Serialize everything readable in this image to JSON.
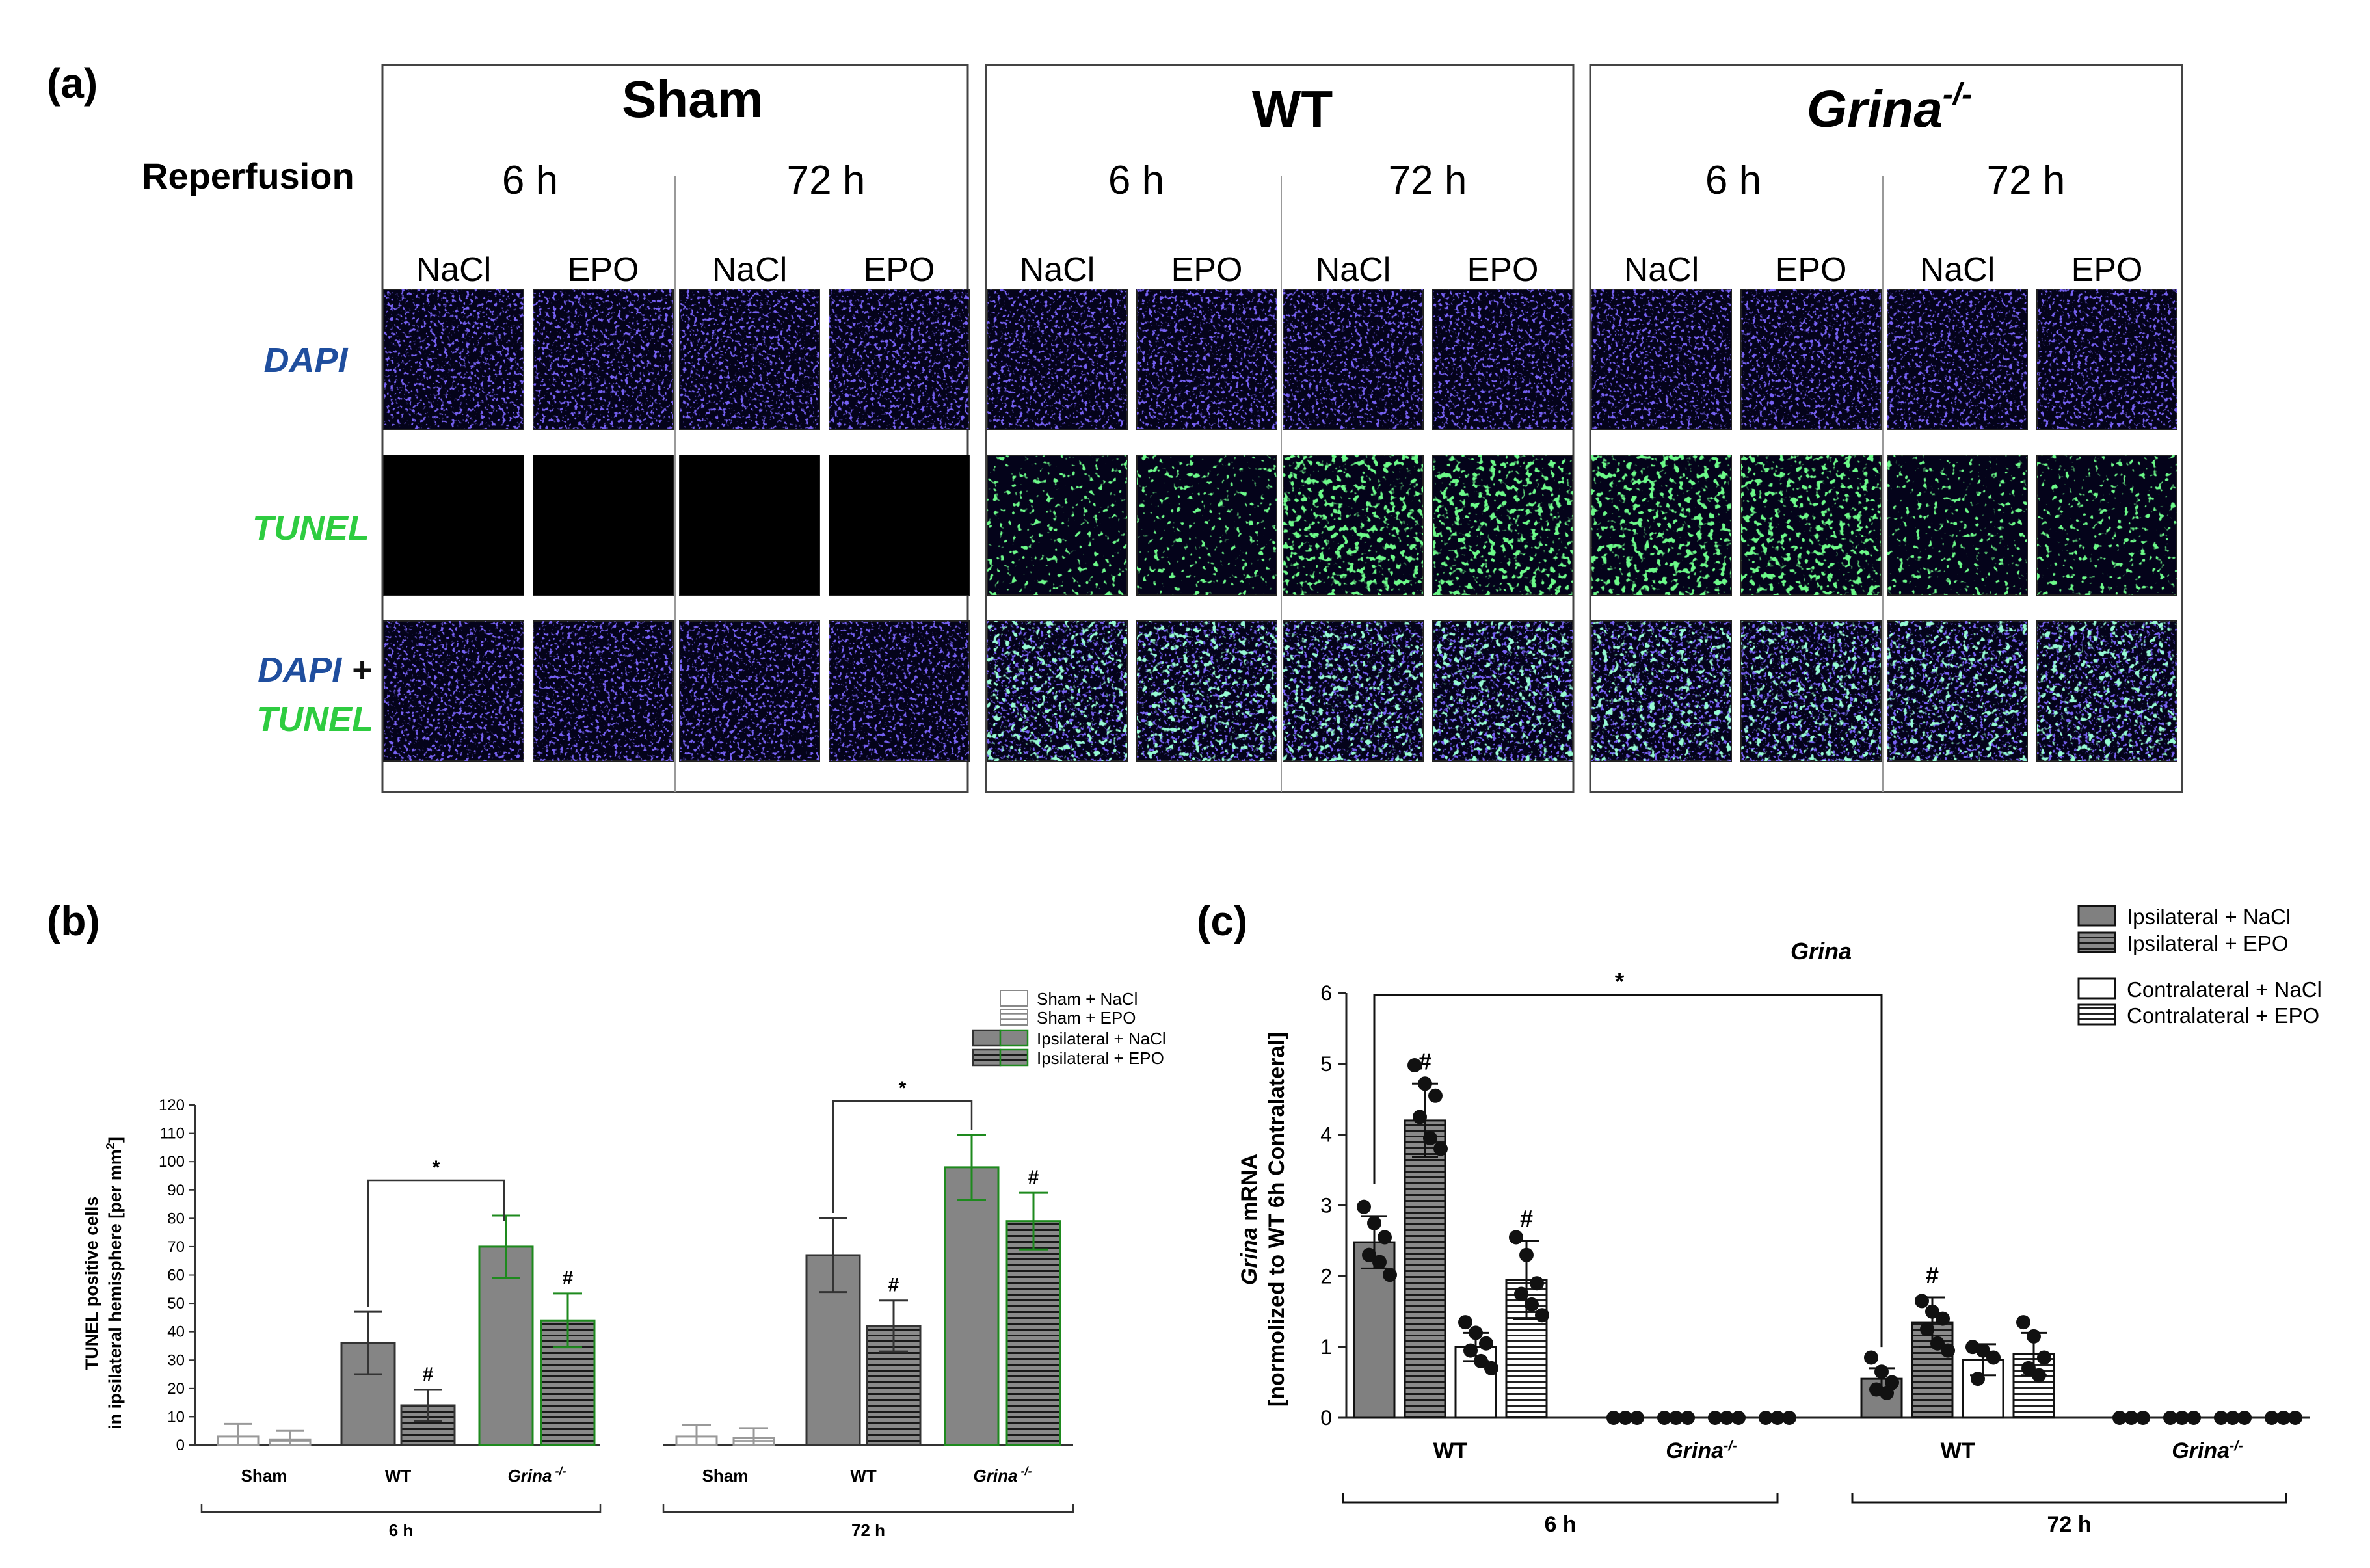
{
  "figure": {
    "panel_labels": [
      "(a)",
      "(b)",
      "(c)"
    ],
    "panel_a": {
      "reperfusion_label": "Reperfusion",
      "groups": [
        {
          "name": "Sham",
          "italic": false
        },
        {
          "name": "WT",
          "italic": false
        },
        {
          "name": "Grina",
          "superscript": "-/-",
          "italic": true
        }
      ],
      "timepoints": [
        "6 h",
        "72 h"
      ],
      "treatments": [
        "NaCl",
        "EPO"
      ],
      "rows": [
        {
          "label": "DAPI",
          "color": "#1f4e9e"
        },
        {
          "label": "TUNEL",
          "color": "#2ecc40"
        },
        {
          "label_part1": "DAPI",
          "joiner": " +",
          "label_part2": "TUNEL",
          "color1": "#1f4e9e",
          "color2": "#2ecc40"
        }
      ]
    }
  },
  "chart_data": [
    {
      "panel": "(b)",
      "type": "bar",
      "ylabel_line1": "TUNEL positive cells",
      "ylabel_line2": "in ipsilateral hemisphere [per mm",
      "ylabel_sup": "2",
      "ylabel_end": "]",
      "ylim": [
        0,
        120
      ],
      "yticks": [
        0,
        10,
        20,
        30,
        40,
        50,
        60,
        70,
        80,
        90,
        100,
        110,
        120
      ],
      "legend": [
        {
          "label": "Sham + NaCl",
          "fill": "white",
          "stroke": "#888888",
          "hatch": false
        },
        {
          "label": "Sham + EPO",
          "fill": "white",
          "stroke": "#888888",
          "hatch": true
        },
        {
          "label": "Ipsilateral + NaCl",
          "fill": "#808080",
          "stroke": "#333333",
          "stroke2": "#1e8a1e",
          "hatch": false
        },
        {
          "label": "Ipsilateral + EPO",
          "fill": "white",
          "stroke": "#333333",
          "stroke2": "#1e8a1e",
          "hatch": true
        }
      ],
      "timepoints": [
        {
          "label": "6 h",
          "categories": [
            {
              "label": "Sham",
              "italic": false,
              "bars": [
                {
                  "value": 3,
                  "err": 4.5,
                  "kind": "sham-nacl"
                },
                {
                  "value": 2,
                  "err": 3,
                  "kind": "sham-epo"
                }
              ]
            },
            {
              "label": "WT",
              "italic": false,
              "bars": [
                {
                  "value": 36,
                  "err": 11,
                  "kind": "ipsi-nacl-wt"
                },
                {
                  "value": 14,
                  "err": 5.5,
                  "kind": "ipsi-epo-wt",
                  "mark": "#"
                }
              ]
            },
            {
              "label": "Grina",
              "sup": "-/-",
              "italic": true,
              "bars": [
                {
                  "value": 70,
                  "err": 11,
                  "kind": "ipsi-nacl-grina"
                },
                {
                  "value": 44,
                  "err": 9.5,
                  "kind": "ipsi-epo-grina",
                  "mark": "#"
                }
              ]
            }
          ]
        },
        {
          "label": "72 h",
          "categories": [
            {
              "label": "Sham",
              "italic": false,
              "bars": [
                {
                  "value": 3,
                  "err": 4,
                  "kind": "sham-nacl"
                },
                {
                  "value": 2.5,
                  "err": 3.5,
                  "kind": "sham-epo"
                }
              ]
            },
            {
              "label": "WT",
              "italic": false,
              "bars": [
                {
                  "value": 67,
                  "err": 13,
                  "kind": "ipsi-nacl-wt"
                },
                {
                  "value": 42,
                  "err": 9,
                  "kind": "ipsi-epo-wt",
                  "mark": "#"
                }
              ]
            },
            {
              "label": "Grina",
              "sup": "-/-",
              "italic": true,
              "bars": [
                {
                  "value": 98,
                  "err": 11.5,
                  "kind": "ipsi-nacl-grina"
                },
                {
                  "value": 79,
                  "err": 10,
                  "kind": "ipsi-epo-grina",
                  "mark": "#"
                }
              ]
            }
          ]
        }
      ],
      "significance": [
        {
          "timepoint": 0,
          "from": "WT NaCl",
          "to": "Grina NaCl",
          "label": "*"
        },
        {
          "timepoint": 1,
          "from": "WT NaCl",
          "to": "Grina NaCl",
          "label": "*"
        }
      ]
    },
    {
      "panel": "(c)",
      "type": "bar",
      "title": "Grina",
      "ylabel_line1_italic": "Grina",
      "ylabel_line1_rest": " mRNA",
      "ylabel_line2": "[normolized to WT 6h Contralateral]",
      "ylim": [
        0,
        6
      ],
      "yticks": [
        0,
        1,
        2,
        3,
        4,
        5,
        6
      ],
      "legend": [
        {
          "label": "Ipsilateral + NaCl",
          "fill": "#808080",
          "hatch": false
        },
        {
          "label": "Ipsilateral + EPO",
          "fill": "#808080",
          "hatch": true
        },
        {
          "label": "Contralateral + NaCl",
          "fill": "white",
          "hatch": false
        },
        {
          "label": "Contralateral + EPO",
          "fill": "white",
          "hatch": true
        }
      ],
      "timepoints": [
        {
          "label": "6 h",
          "categories": [
            {
              "label": "WT",
              "italic": false,
              "bars": [
                {
                  "value": 2.48,
                  "err": 0.37,
                  "kind": "ipsi-nacl",
                  "points": [
                    2.98,
                    2.75,
                    2.55,
                    2.3,
                    2.2,
                    2.02
                  ]
                },
                {
                  "value": 4.2,
                  "err": 0.52,
                  "kind": "ipsi-epo",
                  "mark": "#",
                  "points": [
                    4.98,
                    4.72,
                    4.55,
                    4.25,
                    3.95,
                    3.8
                  ]
                },
                {
                  "value": 1.0,
                  "err": 0.2,
                  "kind": "contra-nacl",
                  "points": [
                    1.35,
                    1.2,
                    1.05,
                    0.95,
                    0.8,
                    0.7
                  ]
                },
                {
                  "value": 1.95,
                  "err": 0.55,
                  "kind": "contra-epo",
                  "mark": "#",
                  "points": [
                    2.55,
                    2.3,
                    1.9,
                    1.75,
                    1.6,
                    1.45
                  ]
                }
              ]
            },
            {
              "label": "Grina",
              "sup": "-/-",
              "italic": true,
              "bars": [
                {
                  "value": 0,
                  "err": 0,
                  "kind": "ipsi-nacl",
                  "points": [
                    0,
                    0,
                    0
                  ]
                },
                {
                  "value": 0,
                  "err": 0,
                  "kind": "ipsi-epo",
                  "points": [
                    0,
                    0,
                    0
                  ]
                },
                {
                  "value": 0,
                  "err": 0,
                  "kind": "contra-nacl",
                  "points": [
                    0,
                    0,
                    0
                  ]
                },
                {
                  "value": 0,
                  "err": 0,
                  "kind": "contra-epo",
                  "points": [
                    0,
                    0,
                    0
                  ]
                }
              ]
            }
          ]
        },
        {
          "label": "72 h",
          "categories": [
            {
              "label": "WT",
              "italic": false,
              "bars": [
                {
                  "value": 0.55,
                  "err": 0.15,
                  "kind": "ipsi-nacl",
                  "points": [
                    0.85,
                    0.65,
                    0.5,
                    0.4,
                    0.35
                  ]
                },
                {
                  "value": 1.35,
                  "err": 0.35,
                  "kind": "ipsi-epo",
                  "mark": "#",
                  "points": [
                    1.65,
                    1.5,
                    1.4,
                    1.25,
                    1.05,
                    0.95
                  ]
                },
                {
                  "value": 0.82,
                  "err": 0.22,
                  "kind": "contra-nacl",
                  "points": [
                    1.0,
                    0.95,
                    0.85,
                    0.55
                  ]
                },
                {
                  "value": 0.9,
                  "err": 0.3,
                  "kind": "contra-epo",
                  "points": [
                    1.35,
                    1.15,
                    0.85,
                    0.7,
                    0.6
                  ]
                }
              ]
            },
            {
              "label": "Grina",
              "sup": "-/-",
              "italic": true,
              "bars": [
                {
                  "value": 0,
                  "err": 0,
                  "kind": "ipsi-nacl",
                  "points": [
                    0,
                    0,
                    0
                  ]
                },
                {
                  "value": 0,
                  "err": 0,
                  "kind": "ipsi-epo",
                  "points": [
                    0,
                    0,
                    0
                  ]
                },
                {
                  "value": 0,
                  "err": 0,
                  "kind": "contra-nacl",
                  "points": [
                    0,
                    0,
                    0
                  ]
                },
                {
                  "value": 0,
                  "err": 0,
                  "kind": "contra-epo",
                  "points": [
                    0,
                    0,
                    0
                  ]
                }
              ]
            }
          ]
        }
      ],
      "significance": [
        {
          "from": "WT 6 h Ipsilateral + NaCl",
          "to": "WT 72 h Ipsilateral + NaCl",
          "label": "*"
        }
      ]
    }
  ]
}
